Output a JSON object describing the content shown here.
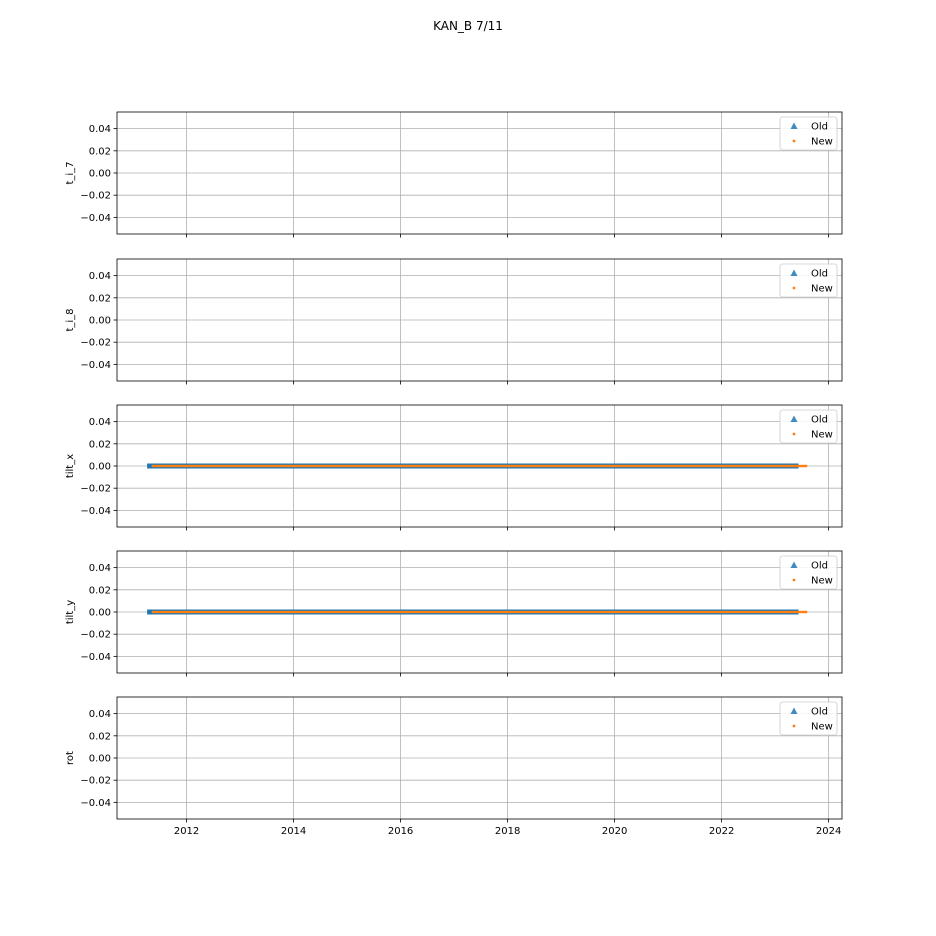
{
  "figure": {
    "title": "KAN_B 7/11"
  },
  "chart_data": [
    {
      "type": "scatter",
      "ylabel": "t_i_7",
      "xlim": [
        2010.7,
        2024.25
      ],
      "ylim": [
        -0.055,
        0.055
      ],
      "yticks": [
        0.04,
        0.02,
        0.0,
        -0.02,
        -0.04
      ],
      "ytick_labels": [
        "0.04",
        "0.02",
        "0.00",
        "−0.02",
        "−0.04"
      ],
      "xticks": [
        2012,
        2014,
        2016,
        2018,
        2020,
        2022,
        2024
      ],
      "xtick_labels": [],
      "grid": true,
      "legend": {
        "position": "top-right",
        "entries": [
          "Old",
          "New"
        ]
      },
      "series": [
        {
          "name": "Old",
          "marker": "triangle",
          "color": "#1f77b4",
          "points": []
        },
        {
          "name": "New",
          "marker": "dot",
          "color": "#ff7f0e",
          "points": []
        }
      ]
    },
    {
      "type": "scatter",
      "ylabel": "t_i_8",
      "xlim": [
        2010.7,
        2024.25
      ],
      "ylim": [
        -0.055,
        0.055
      ],
      "yticks": [
        0.04,
        0.02,
        0.0,
        -0.02,
        -0.04
      ],
      "ytick_labels": [
        "0.04",
        "0.02",
        "0.00",
        "−0.02",
        "−0.04"
      ],
      "xticks": [
        2012,
        2014,
        2016,
        2018,
        2020,
        2022,
        2024
      ],
      "xtick_labels": [],
      "grid": true,
      "legend": {
        "position": "top-right",
        "entries": [
          "Old",
          "New"
        ]
      },
      "series": [
        {
          "name": "Old",
          "marker": "triangle",
          "color": "#1f77b4",
          "points": []
        },
        {
          "name": "New",
          "marker": "dot",
          "color": "#ff7f0e",
          "points": []
        }
      ]
    },
    {
      "type": "scatter",
      "ylabel": "tilt_x",
      "xlim": [
        2010.7,
        2024.25
      ],
      "ylim": [
        -0.055,
        0.055
      ],
      "yticks": [
        0.04,
        0.02,
        0.0,
        -0.02,
        -0.04
      ],
      "ytick_labels": [
        "0.04",
        "0.02",
        "0.00",
        "−0.02",
        "−0.04"
      ],
      "xticks": [
        2012,
        2014,
        2016,
        2018,
        2020,
        2022,
        2024
      ],
      "xtick_labels": [],
      "grid": true,
      "legend": {
        "position": "top-right",
        "entries": [
          "Old",
          "New"
        ]
      },
      "series": [
        {
          "name": "Old",
          "marker": "triangle",
          "color": "#1f77b4",
          "x_range": [
            2011.3,
            2023.4
          ],
          "y": 0.0
        },
        {
          "name": "New",
          "marker": "dot",
          "color": "#ff7f0e",
          "x_range": [
            2011.35,
            2023.6
          ],
          "y": 0.0
        }
      ]
    },
    {
      "type": "scatter",
      "ylabel": "tilt_y",
      "xlim": [
        2010.7,
        2024.25
      ],
      "ylim": [
        -0.055,
        0.055
      ],
      "yticks": [
        0.04,
        0.02,
        0.0,
        -0.02,
        -0.04
      ],
      "ytick_labels": [
        "0.04",
        "0.02",
        "0.00",
        "−0.02",
        "−0.04"
      ],
      "xticks": [
        2012,
        2014,
        2016,
        2018,
        2020,
        2022,
        2024
      ],
      "xtick_labels": [],
      "grid": true,
      "legend": {
        "position": "top-right",
        "entries": [
          "Old",
          "New"
        ]
      },
      "series": [
        {
          "name": "Old",
          "marker": "triangle",
          "color": "#1f77b4",
          "x_range": [
            2011.3,
            2023.4
          ],
          "y": 0.0
        },
        {
          "name": "New",
          "marker": "dot",
          "color": "#ff7f0e",
          "x_range": [
            2011.35,
            2023.6
          ],
          "y": 0.0
        }
      ]
    },
    {
      "type": "scatter",
      "ylabel": "rot",
      "xlim": [
        2010.7,
        2024.25
      ],
      "ylim": [
        -0.055,
        0.055
      ],
      "yticks": [
        0.04,
        0.02,
        0.0,
        -0.02,
        -0.04
      ],
      "ytick_labels": [
        "0.04",
        "0.02",
        "0.00",
        "−0.02",
        "−0.04"
      ],
      "xticks": [
        2012,
        2014,
        2016,
        2018,
        2020,
        2022,
        2024
      ],
      "xtick_labels": [
        "2012",
        "2014",
        "2016",
        "2018",
        "2020",
        "2022",
        "2024"
      ],
      "grid": true,
      "legend": {
        "position": "top-right",
        "entries": [
          "Old",
          "New"
        ]
      },
      "series": [
        {
          "name": "Old",
          "marker": "triangle",
          "color": "#1f77b4",
          "points": []
        },
        {
          "name": "New",
          "marker": "dot",
          "color": "#ff7f0e",
          "points": []
        }
      ]
    }
  ]
}
